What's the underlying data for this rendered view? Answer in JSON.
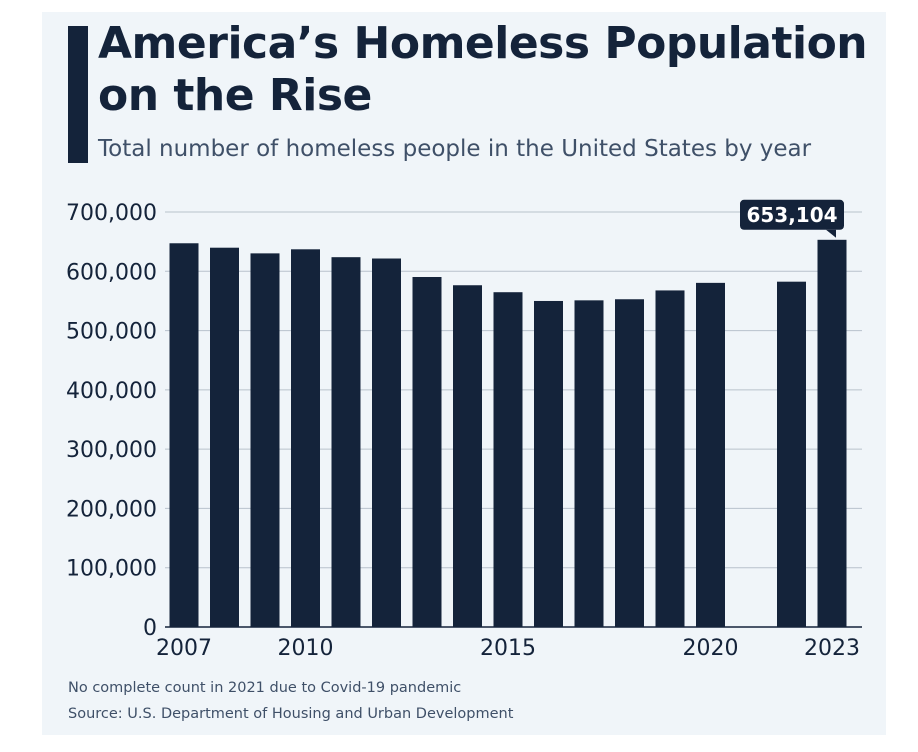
{
  "chart_data": {
    "type": "bar",
    "title": "America’s Homeless Population on the Rise",
    "subtitle": "Total number of homeless people in the United States by year",
    "categories": [
      "2007",
      "2008",
      "2009",
      "2010",
      "2011",
      "2012",
      "2013",
      "2014",
      "2015",
      "2016",
      "2017",
      "2018",
      "2019",
      "2020",
      "2021",
      "2022",
      "2023"
    ],
    "values": [
      647258,
      639784,
      630227,
      637077,
      623788,
      621553,
      590364,
      576450,
      564708,
      549928,
      550996,
      552830,
      567715,
      580466,
      null,
      582462,
      653104
    ],
    "x_tick_labels": [
      "2007",
      "2010",
      "2015",
      "2020",
      "2023"
    ],
    "y_ticks": [
      0,
      100000,
      200000,
      300000,
      400000,
      500000,
      600000,
      700000
    ],
    "y_tick_labels": [
      "0",
      "100,000",
      "200,000",
      "300,000",
      "400,000",
      "500,000",
      "600,000",
      "700,000"
    ],
    "ylim": [
      0,
      700000
    ],
    "grid": true,
    "annotation": {
      "category": "2023",
      "text": "653,104"
    },
    "bar_color": "#14233a",
    "xlabel": "",
    "ylabel": ""
  },
  "notes": {
    "footnote": "No complete count in 2021 due to Covid-19 pandemic",
    "source": "Source: U.S. Department of Housing and Urban Development"
  }
}
